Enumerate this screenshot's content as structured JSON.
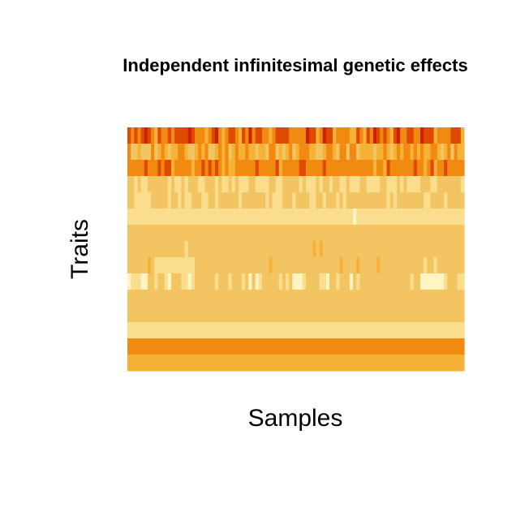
{
  "chart_data": {
    "type": "heatmap",
    "title": "Independent infinitesimal genetic effects",
    "xlabel": "Samples",
    "ylabel": "Traits",
    "n_rows": 15,
    "n_cols": 100,
    "palette": [
      "#cc2200",
      "#e04a00",
      "#f08a10",
      "#f6b237",
      "#f3c562",
      "#fbdd8e",
      "#fff4c2"
    ],
    "value_range": [
      0,
      6
    ],
    "grid": false,
    "legend": "none",
    "rows": [
      "1212101231221211110122232102321123120211223211112222201132011322223312312012123102211220111322221113",
      "2443444243234332234432324432324323323343342243432432223344322342242243333433234323223232332234324233",
      "2222212221211322222322121212323322222212222213222221122222122222222222222322312222222122321322122222",
      "4454554444445455454445544454554545554455554455444445455545445445545554455554455545455554445544444445",
      "4455555444445445455444554454444445444444454555444544445544544454544444444444454544444444554444544444",
      "5555555555555555555555555555555555555555555555555555555555555555555655555555555555555555555555555555",
      "4444444444444444444444444444444444444444444444444444444444444444444444444444444444444444444444444444",
      "4444444444444444454444444444444444444444444444444444444343444444444444444444444444444444444444444444",
      "4444443455555555555544444444444444444444443444444444444444444443444434444434444444444444544544444444",
      "6555664454456444556544444454445444546465444445454666544445564454446454444444444444445446666666544455",
      "4444444444444444444444444444444444444444444444444444444444444444444444444444444444444444444444444444",
      "4444444444444444444444444444444444444444444444444444444444444444444444444444444444444444444444444444",
      "5555555555555555555555555555555555555555555555555555555555555555555555555555555555555555555555555555",
      "2222222222222222222222222222222222222222222222222222222222222222222222222222222222222222222222222222",
      "3333333333333333333333333333333333333333333333333333333333333333333333333333333333333333333333333333"
    ]
  }
}
